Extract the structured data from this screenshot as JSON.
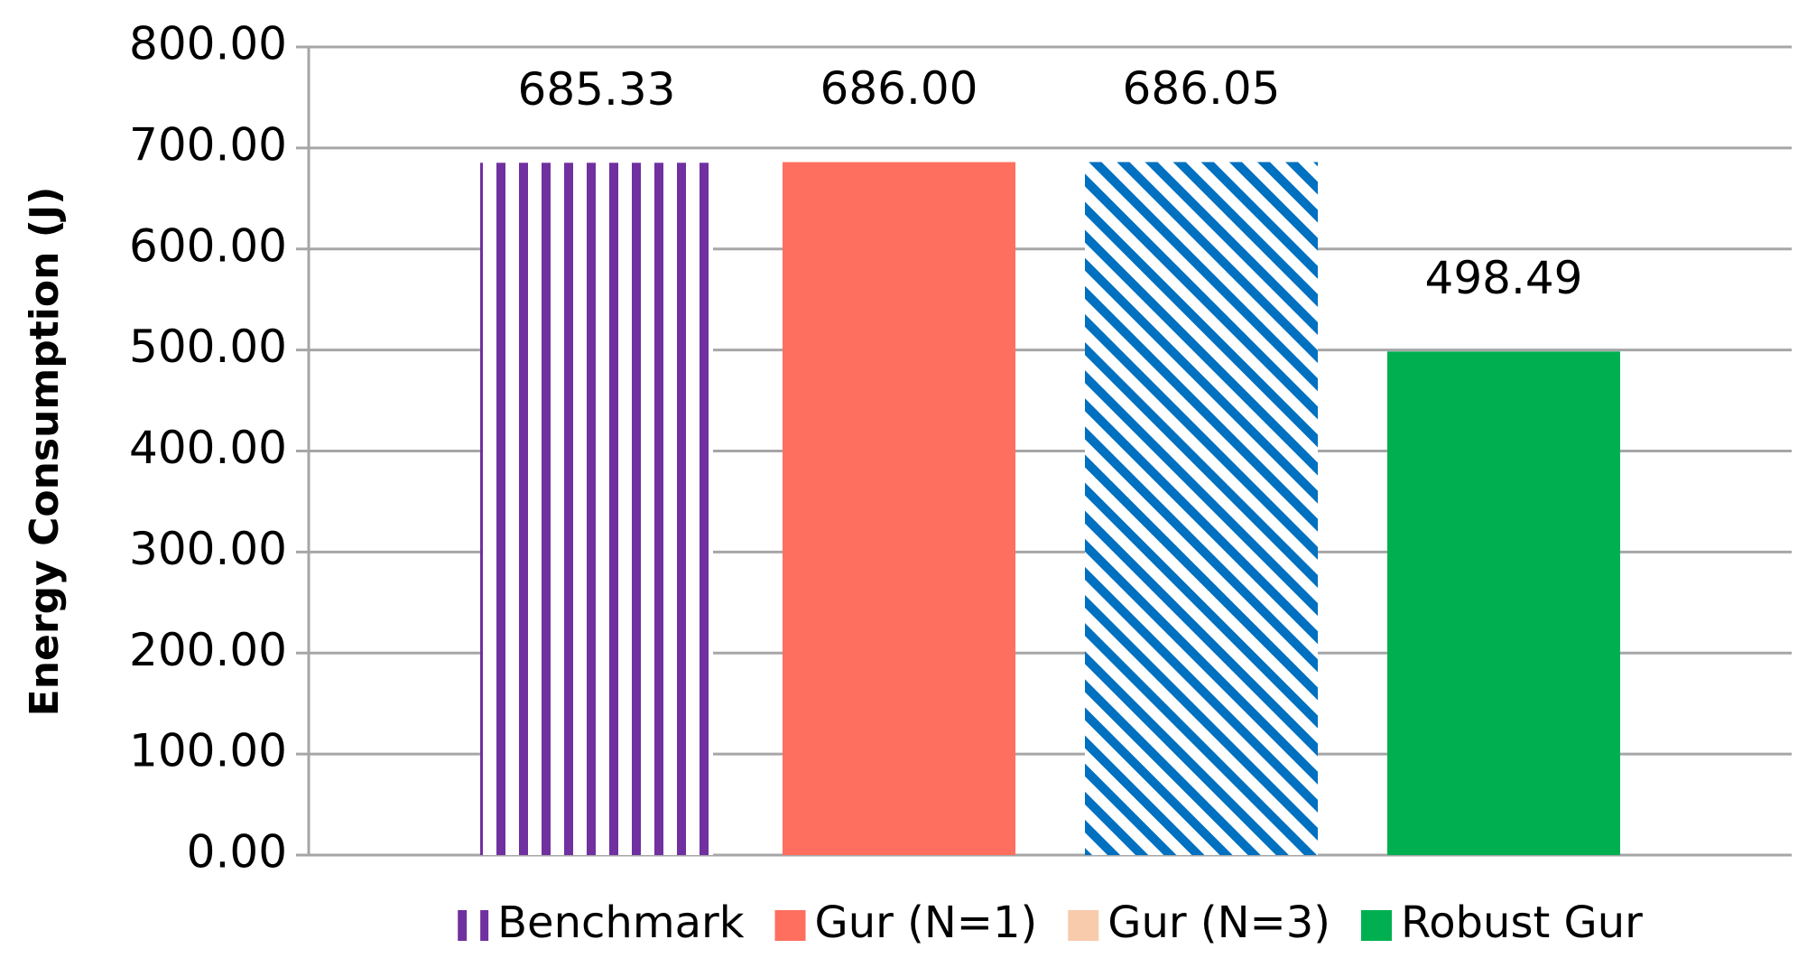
{
  "chart_data": {
    "type": "bar",
    "y_axis_label": "Energy Consumption (J)",
    "categories": [
      null
    ],
    "series": [
      {
        "name": "Benchmark",
        "color": "#7030a0",
        "pattern": "vertical-stripes",
        "values": [
          685.33
        ],
        "value_labels": [
          "685.33"
        ]
      },
      {
        "name": "Gur (N=1)",
        "color": "#ff6f5f",
        "values": [
          686
        ],
        "value_labels": [
          "686.00"
        ]
      },
      {
        "name": "Gur (N=3)",
        "color": "#f8cbad",
        "pattern": "diagonal-stripes",
        "pattern_color": "#0070c0",
        "values": [
          686.05
        ],
        "value_labels": [
          "686.05"
        ]
      },
      {
        "name": "Robust Gur",
        "color": "#00b050",
        "values": [
          498.49
        ],
        "value_labels": [
          "498.49"
        ]
      }
    ],
    "ylim": [
      0,
      800
    ],
    "yticks": [
      {
        "value": 0,
        "label": "0.00"
      },
      {
        "value": 100,
        "label": "100.00"
      },
      {
        "value": 200,
        "label": "200.00"
      },
      {
        "value": 300,
        "label": "300.00"
      },
      {
        "value": 400,
        "label": "400.00"
      },
      {
        "value": 500,
        "label": "500.00"
      },
      {
        "value": 600,
        "label": "600.00"
      },
      {
        "value": 700,
        "label": "700.00"
      },
      {
        "value": 800,
        "label": "800.00"
      }
    ],
    "grid": true,
    "legend": "bottom"
  }
}
